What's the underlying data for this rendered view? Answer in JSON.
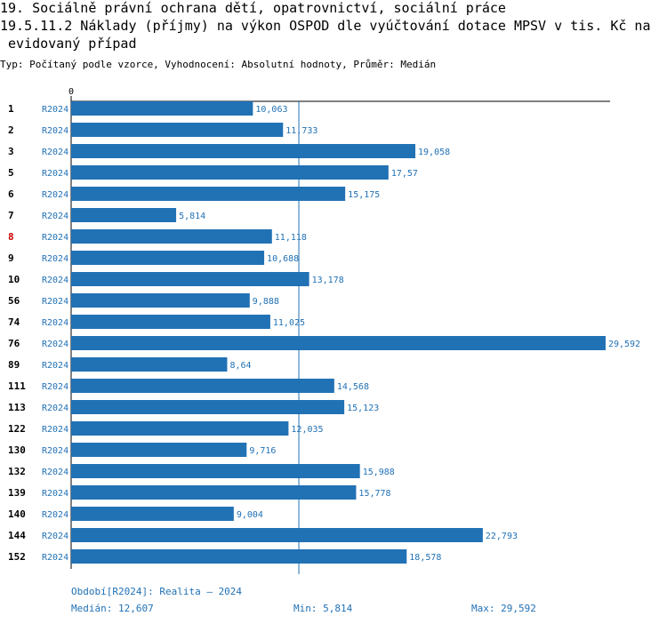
{
  "chart_data": {
    "type": "bar",
    "orientation": "horizontal",
    "heading": "19. Sociálně právní ochrana dětí, opatrovnictví, sociální práce",
    "title": "19.5.11.2 Náklady (příjmy) na výkon OSPOD dle vyúčtování dotace MPSV v tis. Kč na evidovaný případ",
    "subtitle": "Typ: Počítaný podle vzorce, Vyhodnocení: Absolutní hodnoty, Průměr: Medián",
    "categories": [
      "1",
      "2",
      "3",
      "5",
      "6",
      "7",
      "8",
      "9",
      "10",
      "56",
      "74",
      "76",
      "89",
      "111",
      "113",
      "122",
      "130",
      "132",
      "139",
      "140",
      "144",
      "152"
    ],
    "highlighted_category": "8",
    "highlight_color": "#cc0000",
    "series": [
      {
        "name": "R2024",
        "color": "#2171b5",
        "values": [
          10.063,
          11.733,
          19.058,
          17.57,
          15.175,
          5.814,
          11.118,
          10.688,
          13.178,
          9.888,
          11.025,
          29.592,
          8.64,
          14.568,
          15.123,
          12.035,
          9.716,
          15.988,
          15.778,
          9.004,
          22.793,
          18.578
        ],
        "value_labels": [
          "10,063",
          "11,733",
          "19,058",
          "17,57",
          "15,175",
          "5,814",
          "11,118",
          "10,688",
          "13,178",
          "9,888",
          "11,025",
          "29,592",
          "8,64",
          "14,568",
          "15,123",
          "12,035",
          "9,716",
          "15,988",
          "15,778",
          "9,004",
          "22,793",
          "18,578"
        ]
      }
    ],
    "xlim": [
      0,
      29.84
    ],
    "xticks": [
      0
    ],
    "period": "Období[R2024]: Realita – 2024",
    "median": {
      "value": 12.607,
      "label": "Medián: 12,607"
    },
    "min": {
      "value": 5.814,
      "label": "Min: 5,814"
    },
    "max": {
      "value": 29.592,
      "label": "Max: 29,592"
    }
  }
}
